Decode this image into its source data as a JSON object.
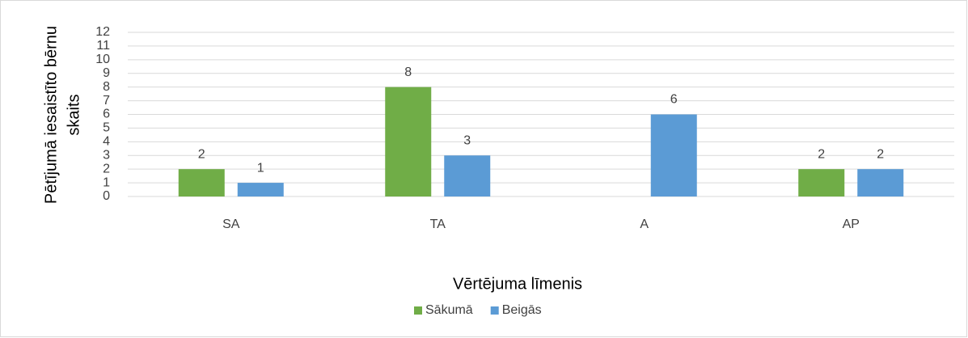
{
  "chart_data": {
    "type": "bar",
    "categories": [
      "SA",
      "TA",
      "A",
      "AP"
    ],
    "series": [
      {
        "name": "Sākumā",
        "color": "#70ad47",
        "values": [
          2,
          8,
          null,
          2
        ]
      },
      {
        "name": "Beigās",
        "color": "#5b9bd5",
        "values": [
          1,
          3,
          6,
          2
        ]
      }
    ],
    "x_label": "Vērtējuma līmenis",
    "y_label": [
      "Pētījumā iesaistīto bērnu",
      "skaits"
    ],
    "ylim": [
      0,
      12
    ],
    "yticks": [
      0,
      1,
      2,
      3,
      4,
      5,
      6,
      7,
      8,
      9,
      10,
      11,
      12
    ],
    "grid": true,
    "legend": "bottom"
  }
}
